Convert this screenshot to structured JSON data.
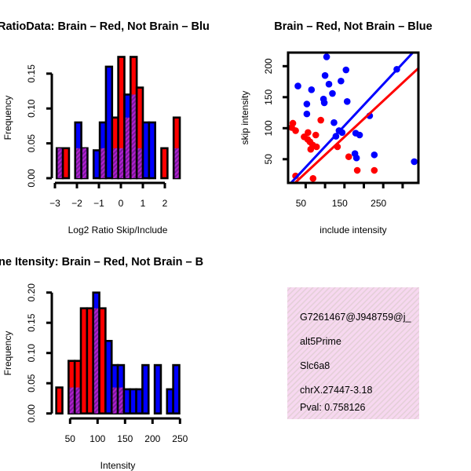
{
  "colors": {
    "red": "#ff0000",
    "blue": "#0000ff",
    "overlap": "#a020c0",
    "info_bg": "#f7d8f0",
    "pval": "#b00000"
  },
  "chart_data": [
    {
      "type": "bar",
      "title": "RatioData: Brain – Red, Not Brain – Blu",
      "xlabel": "Log2 Ratio Skip/Include",
      "ylabel": "Frequency",
      "xlim": [
        -3,
        2.7
      ],
      "ylim": [
        0,
        0.175
      ],
      "xticks": [
        -3,
        -2,
        -1,
        0,
        1,
        2
      ],
      "xtick_labels": [
        "−3",
        "−2",
        "−1",
        "0",
        "1",
        "2"
      ],
      "yticks": [
        0,
        0.05,
        0.1,
        0.15
      ],
      "ytick_labels": [
        "0.00",
        "0.05",
        "0.10",
        "0.15"
      ],
      "bin_start": -2.92,
      "bin_width": 0.28,
      "series": [
        {
          "name": "Not Brain",
          "color": "blue",
          "values": [
            0.043,
            0,
            0,
            0.08,
            0.043,
            0,
            0.04,
            0.08,
            0.16,
            0.043,
            0.043,
            0.12,
            0.12,
            0.043,
            0.08,
            0.08,
            0,
            0,
            0,
            0.043
          ]
        },
        {
          "name": "Brain",
          "color": "red",
          "values": [
            0.043,
            0.043,
            0,
            0.043,
            0.043,
            0,
            0,
            0.043,
            0,
            0.087,
            0.174,
            0.087,
            0.174,
            0.13,
            0,
            0,
            0,
            0.043,
            0,
            0.087
          ]
        }
      ]
    },
    {
      "type": "scatter",
      "title": "Brain – Red, Not Brain – Blue",
      "xlabel": "include intensity",
      "ylabel": "skip intensity",
      "xlim": [
        3,
        341
      ],
      "ylim": [
        11,
        222
      ],
      "xticks": [
        50,
        100,
        150,
        200,
        250,
        300
      ],
      "xtick_labels": [
        "50",
        "",
        "150",
        "",
        "250",
        ""
      ],
      "yticks": [
        50,
        100,
        150,
        200
      ],
      "ytick_labels": [
        "50",
        "100",
        "150",
        "200"
      ],
      "series": [
        {
          "name": "Not Brain",
          "color": "blue",
          "points": [
            [
              30,
              168
            ],
            [
              104,
              215
            ],
            [
              100,
              185
            ],
            [
              154,
              194
            ],
            [
              110,
              171
            ],
            [
              141,
              176
            ],
            [
              65,
              162
            ],
            [
              119,
              156
            ],
            [
              96,
              147
            ],
            [
              98,
              141
            ],
            [
              53,
              139
            ],
            [
              157,
              143
            ],
            [
              53,
              123
            ],
            [
              285,
              195
            ],
            [
              215,
              120
            ],
            [
              123,
              109
            ],
            [
              136,
              96
            ],
            [
              144,
              93
            ],
            [
              128,
              87
            ],
            [
              179,
              92
            ],
            [
              189,
              89
            ],
            [
              177,
              59
            ],
            [
              181,
              52
            ],
            [
              227,
              57
            ],
            [
              330,
              46
            ]
          ],
          "fit": {
            "slope": 0.669,
            "intercept": 3.6
          }
        },
        {
          "name": "Brain",
          "color": "red",
          "points": [
            [
              17,
              108
            ],
            [
              14,
              101
            ],
            [
              24,
              96
            ],
            [
              89,
              113
            ],
            [
              56,
              93
            ],
            [
              76,
              89
            ],
            [
              46,
              86
            ],
            [
              55,
              82
            ],
            [
              61,
              78
            ],
            [
              68,
              73
            ],
            [
              78,
              70
            ],
            [
              63,
              66
            ],
            [
              132,
              70
            ],
            [
              161,
              54
            ],
            [
              183,
              32
            ],
            [
              227,
              32
            ],
            [
              24,
              23
            ],
            [
              69,
              19
            ]
          ],
          "fit": {
            "slope": 0.581,
            "intercept": -1.2
          }
        }
      ]
    },
    {
      "type": "bar",
      "title": "ne Itensity: Brain – Red, Not Brain – B",
      "xlabel": "Intensity",
      "ylabel": "Frequency",
      "xlim": [
        24.8,
        248.8
      ],
      "ylim": [
        0,
        0.2
      ],
      "xticks": [
        50,
        100,
        150,
        200,
        250
      ],
      "xtick_labels": [
        "50",
        "100",
        "150",
        "200",
        "250"
      ],
      "yticks": [
        0,
        0.05,
        0.1,
        0.15,
        0.2
      ],
      "ytick_labels": [
        "0.00",
        "0.05",
        "0.10",
        "0.15",
        "0.20"
      ],
      "bin_start": 24.8,
      "bin_width": 11.2,
      "series": [
        {
          "name": "Not Brain",
          "color": "blue",
          "values": [
            0,
            0,
            0.043,
            0.043,
            0,
            0,
            0.2,
            0,
            0.12,
            0.08,
            0.08,
            0.04,
            0.04,
            0.04,
            0.08,
            0,
            0.08,
            0,
            0.04,
            0.08
          ]
        },
        {
          "name": "Brain",
          "color": "red",
          "values": [
            0.043,
            0,
            0.087,
            0.087,
            0.174,
            0.174,
            0.174,
            0.174,
            0,
            0.043,
            0.043,
            0,
            0,
            0,
            0,
            0,
            0,
            0,
            0,
            0
          ]
        }
      ]
    }
  ],
  "info": {
    "id": "G7261467@J948759@j_",
    "event_type": "alt5Prime",
    "gene": "Slc6a8",
    "location": "chrX.27447-3.18",
    "pval": "Pval: 0.758126"
  }
}
